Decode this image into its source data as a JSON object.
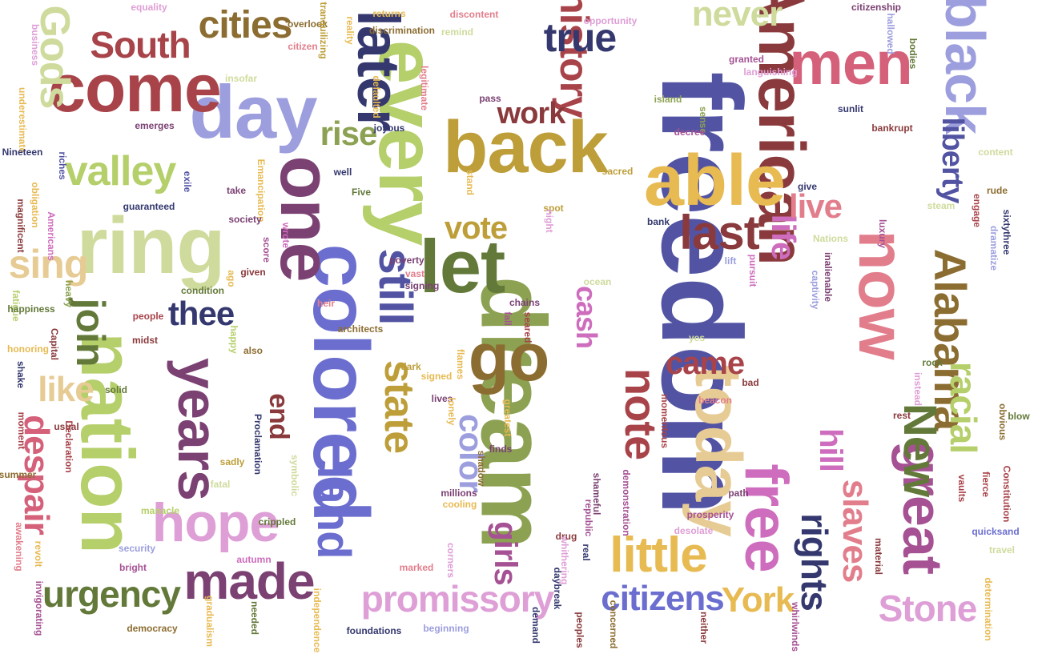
{
  "word_cloud": {
    "palette": {
      "maroon": "#8a3a3c",
      "darkred": "#a8434a",
      "pink": "#e27e8c",
      "rose": "#d5607a",
      "navy": "#34386e",
      "indigo": "#5254a3",
      "periwinkle": "#6b6ecf",
      "lavender": "#9c9ede",
      "olive": "#637939",
      "sage": "#8ca252",
      "lime": "#b5cf6b",
      "celery": "#cedb9c",
      "ochre": "#8c6d31",
      "gold": "#bd9e39",
      "mustard": "#e7ba52",
      "sand": "#e7cb94",
      "plum": "#7b4173",
      "magenta": "#a55194",
      "orchid": "#ce6dbd",
      "lilac": "#de9ed6"
    },
    "words": [
      {
        "text": "freedom",
        "color": "#5254a3"
      },
      {
        "text": "dream",
        "color": "#8ca252"
      },
      {
        "text": "American",
        "color": "#8a3a3c"
      },
      {
        "text": "colored",
        "color": "#6b6ecf"
      },
      {
        "text": "every",
        "color": "#b5cf6b"
      },
      {
        "text": "one",
        "color": "#7b4173"
      },
      {
        "text": "let",
        "color": "#637939"
      },
      {
        "text": "ring",
        "color": "#cedb9c"
      },
      {
        "text": "nation",
        "color": "#b5cf6b"
      },
      {
        "text": "back",
        "color": "#bd9e39"
      },
      {
        "text": "able",
        "color": "#e7ba52"
      },
      {
        "text": "day",
        "color": "#9c9ede"
      },
      {
        "text": "come",
        "color": "#a8434a"
      },
      {
        "text": "go",
        "color": "#8c6d31"
      },
      {
        "text": "today",
        "color": "#e7cb94"
      },
      {
        "text": "men",
        "color": "#d5607a"
      },
      {
        "text": "black",
        "color": "#9c9ede"
      },
      {
        "text": "now",
        "color": "#e27e8c"
      },
      {
        "text": "years",
        "color": "#7b4173"
      },
      {
        "text": "later",
        "color": "#34386e"
      },
      {
        "text": "still",
        "color": "#5254a3"
      },
      {
        "text": "hope",
        "color": "#de9ed6"
      },
      {
        "text": "land",
        "color": "#6b6ecf"
      },
      {
        "text": "free",
        "color": "#ce6dbd"
      },
      {
        "text": "great",
        "color": "#a55194"
      },
      {
        "text": "Alabama",
        "color": "#8c6d31"
      },
      {
        "text": "New",
        "color": "#637939"
      },
      {
        "text": "made",
        "color": "#7b4173"
      },
      {
        "text": "little",
        "color": "#e7ba52"
      },
      {
        "text": "note",
        "color": "#a8434a"
      },
      {
        "text": "last",
        "color": "#8a3a3c"
      },
      {
        "text": "state",
        "color": "#bd9e39"
      },
      {
        "text": "history",
        "color": "#a8434a"
      },
      {
        "text": "true",
        "color": "#34386e"
      },
      {
        "text": "never",
        "color": "#cedb9c"
      },
      {
        "text": "cities",
        "color": "#8c6d31"
      },
      {
        "text": "South",
        "color": "#a8434a"
      },
      {
        "text": "Gods",
        "color": "#cedb9c"
      },
      {
        "text": "valley",
        "color": "#b5cf6b"
      },
      {
        "text": "sing",
        "color": "#e7cb94"
      },
      {
        "text": "join",
        "color": "#637939"
      },
      {
        "text": "like",
        "color": "#e7cb94"
      },
      {
        "text": "despair",
        "color": "#d5607a"
      },
      {
        "text": "urgency",
        "color": "#637939"
      },
      {
        "text": "promissory",
        "color": "#de9ed6"
      },
      {
        "text": "citizens",
        "color": "#6b6ecf"
      },
      {
        "text": "York",
        "color": "#e7ba52"
      },
      {
        "text": "Stone",
        "color": "#de9ed6"
      },
      {
        "text": "rights",
        "color": "#34386e"
      },
      {
        "text": "slaves",
        "color": "#e27e8c"
      },
      {
        "text": "racial",
        "color": "#b5cf6b"
      },
      {
        "text": "hill",
        "color": "#ce6dbd"
      },
      {
        "text": "liberty",
        "color": "#5254a3"
      },
      {
        "text": "life",
        "color": "#ce6dbd"
      },
      {
        "text": "live",
        "color": "#e27e8c"
      },
      {
        "text": "thee",
        "color": "#34386e"
      },
      {
        "text": "vote",
        "color": "#bd9e39"
      },
      {
        "text": "rise",
        "color": "#8ca252"
      },
      {
        "text": "work",
        "color": "#8a3a3c"
      },
      {
        "text": "came",
        "color": "#a8434a"
      },
      {
        "text": "cash",
        "color": "#ce6dbd"
      },
      {
        "text": "color",
        "color": "#9c9ede"
      },
      {
        "text": "end",
        "color": "#8a3a3c"
      },
      {
        "text": "girls",
        "color": "#a55194"
      },
      {
        "text": "business",
        "color": "#de9ed6"
      },
      {
        "text": "equality",
        "color": "#de9ed6"
      },
      {
        "text": "overlook",
        "color": "#8c6d31"
      },
      {
        "text": "citizen",
        "color": "#e27e8c"
      },
      {
        "text": "tranquilizing",
        "color": "#bd9e39"
      },
      {
        "text": "reality",
        "color": "#e7ba52"
      },
      {
        "text": "returns",
        "color": "#e7ba52"
      },
      {
        "text": "discrimination",
        "color": "#8c6d31"
      },
      {
        "text": "discontent",
        "color": "#e27e8c"
      },
      {
        "text": "remind",
        "color": "#cedb9c"
      },
      {
        "text": "opportunity",
        "color": "#de9ed6"
      },
      {
        "text": "citizenship",
        "color": "#7b4173"
      },
      {
        "text": "hallowed",
        "color": "#9c9ede"
      },
      {
        "text": "bodies",
        "color": "#637939"
      },
      {
        "text": "granted",
        "color": "#a55194"
      },
      {
        "text": "languishing",
        "color": "#de9ed6"
      },
      {
        "text": "insofar",
        "color": "#cedb9c"
      },
      {
        "text": "defaulted",
        "color": "#e7ba52"
      },
      {
        "text": "legitimate",
        "color": "#e27e8c"
      },
      {
        "text": "pass",
        "color": "#7b4173"
      },
      {
        "text": "island",
        "color": "#8ca252"
      },
      {
        "text": "sense",
        "color": "#8ca252"
      },
      {
        "text": "sunlit",
        "color": "#34386e"
      },
      {
        "text": "bankrupt",
        "color": "#8a3a3c"
      },
      {
        "text": "underestimate",
        "color": "#e7ba52"
      },
      {
        "text": "emerges",
        "color": "#7b4173"
      },
      {
        "text": "joyous",
        "color": "#34386e"
      },
      {
        "text": "decree",
        "color": "#a55194"
      },
      {
        "text": "Nineteen",
        "color": "#34386e"
      },
      {
        "text": "riches",
        "color": "#5254a3"
      },
      {
        "text": "exile",
        "color": "#5254a3"
      },
      {
        "text": "well",
        "color": "#34386e"
      },
      {
        "text": "Five",
        "color": "#637939"
      },
      {
        "text": "sacred",
        "color": "#bd9e39"
      },
      {
        "text": "stand",
        "color": "#e7ba52"
      },
      {
        "text": "content",
        "color": "#cedb9c"
      },
      {
        "text": "rude",
        "color": "#8c6d31"
      },
      {
        "text": "obligation",
        "color": "#e7ba52"
      },
      {
        "text": "Emancipation",
        "color": "#e7ba52"
      },
      {
        "text": "take",
        "color": "#7b4173"
      },
      {
        "text": "give",
        "color": "#34386e"
      },
      {
        "text": "steam",
        "color": "#cedb9c"
      },
      {
        "text": "guaranteed",
        "color": "#34386e"
      },
      {
        "text": "spot",
        "color": "#bd9e39"
      },
      {
        "text": "bank",
        "color": "#34386e"
      },
      {
        "text": "engage",
        "color": "#a8434a"
      },
      {
        "text": "sixtythree",
        "color": "#34386e"
      },
      {
        "text": "magnificent",
        "color": "#8a3a3c"
      },
      {
        "text": "Americans",
        "color": "#ce6dbd"
      },
      {
        "text": "society",
        "color": "#7b4173"
      },
      {
        "text": "night",
        "color": "#de9ed6"
      },
      {
        "text": "luxury",
        "color": "#a55194"
      },
      {
        "text": "dramatize",
        "color": "#9c9ede"
      },
      {
        "text": "Nations",
        "color": "#cedb9c"
      },
      {
        "text": "wrote",
        "color": "#ce6dbd"
      },
      {
        "text": "score",
        "color": "#a55194"
      },
      {
        "text": "poverty",
        "color": "#7b4173"
      },
      {
        "text": "lift",
        "color": "#9c9ede"
      },
      {
        "text": "pursuit",
        "color": "#ce6dbd"
      },
      {
        "text": "inalienable",
        "color": "#7b4173"
      },
      {
        "text": "given",
        "color": "#8a3a3c"
      },
      {
        "text": "vast",
        "color": "#e27e8c"
      },
      {
        "text": "signing",
        "color": "#7b4173"
      },
      {
        "text": "captivity",
        "color": "#9c9ede"
      },
      {
        "text": "ago",
        "color": "#e7ba52"
      },
      {
        "text": "condition",
        "color": "#637939"
      },
      {
        "text": "fatigue",
        "color": "#b5cf6b"
      },
      {
        "text": "happiness",
        "color": "#637939"
      },
      {
        "text": "heavy",
        "color": "#8ca252"
      },
      {
        "text": "ocean",
        "color": "#cedb9c"
      },
      {
        "text": "heir",
        "color": "#e27e8c"
      },
      {
        "text": "people",
        "color": "#a8434a"
      },
      {
        "text": "chains",
        "color": "#7b4173"
      },
      {
        "text": "honoring",
        "color": "#e7ba52"
      },
      {
        "text": "midst",
        "color": "#8a3a3c"
      },
      {
        "text": "architects",
        "color": "#8c6d31"
      },
      {
        "text": "fall",
        "color": "#a55194"
      },
      {
        "text": "seared",
        "color": "#a8434a"
      },
      {
        "text": "yes",
        "color": "#cedb9c"
      },
      {
        "text": "Capital",
        "color": "#8a3a3c"
      },
      {
        "text": "happy",
        "color": "#b5cf6b"
      },
      {
        "text": "also",
        "color": "#8c6d31"
      },
      {
        "text": "rock",
        "color": "#637939"
      },
      {
        "text": "bad",
        "color": "#8a3a3c"
      },
      {
        "text": "instead",
        "color": "#de9ed6"
      },
      {
        "text": "shake",
        "color": "#34386e"
      },
      {
        "text": "solid",
        "color": "#637939"
      },
      {
        "text": "dark",
        "color": "#bd9e39"
      },
      {
        "text": "flames",
        "color": "#e7ba52"
      },
      {
        "text": "signed",
        "color": "#e7ba52"
      },
      {
        "text": "lives",
        "color": "#7b4173"
      },
      {
        "text": "beacon",
        "color": "#e27e8c"
      },
      {
        "text": "blow",
        "color": "#637939"
      },
      {
        "text": "moment",
        "color": "#a8434a"
      },
      {
        "text": "usual",
        "color": "#8a3a3c"
      },
      {
        "text": "Declaration",
        "color": "#a8434a"
      },
      {
        "text": "lonely",
        "color": "#e7ba52"
      },
      {
        "text": "greatest",
        "color": "#e7ba52"
      },
      {
        "text": "momentous",
        "color": "#a8434a"
      },
      {
        "text": "rest",
        "color": "#8a3a3c"
      },
      {
        "text": "obvious",
        "color": "#8c6d31"
      },
      {
        "text": "summer",
        "color": "#8c6d31"
      },
      {
        "text": "Proclamation",
        "color": "#34386e"
      },
      {
        "text": "sadly",
        "color": "#bd9e39"
      },
      {
        "text": "symbolic",
        "color": "#cedb9c"
      },
      {
        "text": "finds",
        "color": "#7b4173"
      },
      {
        "text": "shadow",
        "color": "#8c6d31"
      },
      {
        "text": "fierce",
        "color": "#a8434a"
      },
      {
        "text": "Constitution",
        "color": "#a8434a"
      },
      {
        "text": "fatal",
        "color": "#cedb9c"
      },
      {
        "text": "millions",
        "color": "#7b4173"
      },
      {
        "text": "cooling",
        "color": "#e7ba52"
      },
      {
        "text": "shameful",
        "color": "#7b4173"
      },
      {
        "text": "demonstration",
        "color": "#a55194"
      },
      {
        "text": "path",
        "color": "#7b4173"
      },
      {
        "text": "vaults",
        "color": "#a8434a"
      },
      {
        "text": "manacle",
        "color": "#b5cf6b"
      },
      {
        "text": "republic",
        "color": "#a55194"
      },
      {
        "text": "prosperity",
        "color": "#a55194"
      },
      {
        "text": "crippled",
        "color": "#637939"
      },
      {
        "text": "desolate",
        "color": "#de9ed6"
      },
      {
        "text": "quicksand",
        "color": "#6b6ecf"
      },
      {
        "text": "awakening",
        "color": "#e27e8c"
      },
      {
        "text": "revolt",
        "color": "#e7ba52"
      },
      {
        "text": "security",
        "color": "#9c9ede"
      },
      {
        "text": "bright",
        "color": "#a55194"
      },
      {
        "text": "drug",
        "color": "#8a3a3c"
      },
      {
        "text": "whithering",
        "color": "#de9ed6"
      },
      {
        "text": "real",
        "color": "#34386e"
      },
      {
        "text": "material",
        "color": "#8a3a3c"
      },
      {
        "text": "travel",
        "color": "#cedb9c"
      },
      {
        "text": "autumn",
        "color": "#ce6dbd"
      },
      {
        "text": "marked",
        "color": "#e27e8c"
      },
      {
        "text": "corners",
        "color": "#de9ed6"
      },
      {
        "text": "daybreak",
        "color": "#34386e"
      },
      {
        "text": "invigorating",
        "color": "#a55194"
      },
      {
        "text": "democracy",
        "color": "#8c6d31"
      },
      {
        "text": "gradualism",
        "color": "#e7ba52"
      },
      {
        "text": "needed",
        "color": "#637939"
      },
      {
        "text": "independence",
        "color": "#e7ba52"
      },
      {
        "text": "foundations",
        "color": "#34386e"
      },
      {
        "text": "beginning",
        "color": "#9c9ede"
      },
      {
        "text": "demand",
        "color": "#34386e"
      },
      {
        "text": "peoples",
        "color": "#8a3a3c"
      },
      {
        "text": "concerned",
        "color": "#8c6d31"
      },
      {
        "text": "neither",
        "color": "#8a3a3c"
      },
      {
        "text": "whirlwinds",
        "color": "#a55194"
      },
      {
        "text": "determination",
        "color": "#e7ba52"
      }
    ]
  }
}
